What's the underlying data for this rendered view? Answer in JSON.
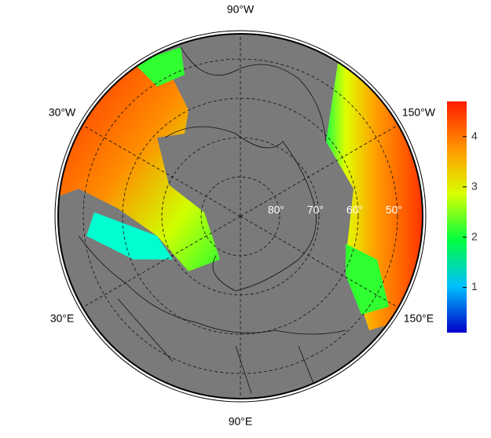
{
  "map": {
    "meridians": [
      {
        "value": -90,
        "label": "90°W"
      },
      {
        "value": -30,
        "label": "30°W"
      },
      {
        "value": -150,
        "label": "150°W"
      },
      {
        "value": 30,
        "label": "30°E"
      },
      {
        "value": 150,
        "label": "150°E"
      },
      {
        "value": 90,
        "label": "90°E"
      }
    ],
    "parallels": [
      {
        "value": 80,
        "label": "80°"
      },
      {
        "value": 70,
        "label": "70°"
      },
      {
        "value": 60,
        "label": "60°"
      },
      {
        "value": 50,
        "label": "50°"
      }
    ],
    "colorbar": {
      "lim": [
        0.1,
        4.7
      ],
      "ticks": [
        1,
        2,
        3,
        4
      ]
    }
  }
}
